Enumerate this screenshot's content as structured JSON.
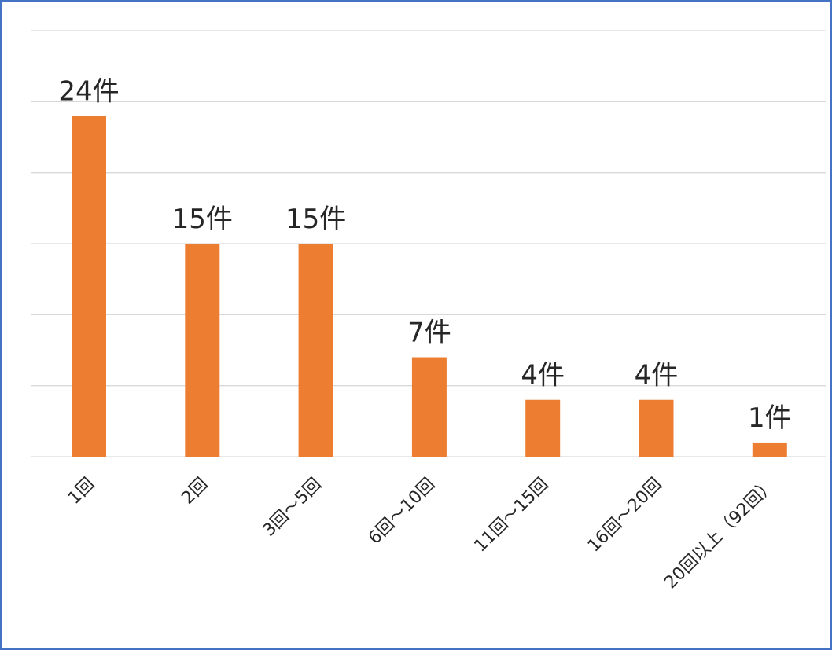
{
  "chart_data": {
    "type": "bar",
    "categories": [
      "1回",
      "2回",
      "3回～5回",
      "6回～10回",
      "11回～15回",
      "16回～20回",
      "20回以上（92回）"
    ],
    "values": [
      24,
      15,
      15,
      7,
      4,
      4,
      1
    ],
    "data_labels": [
      "24件",
      "15件",
      "15件",
      "7件",
      "4件",
      "4件",
      "1件"
    ],
    "title": "",
    "xlabel": "",
    "ylabel": "",
    "ylim": [
      0,
      30
    ],
    "grid_step": 5,
    "grid": true,
    "y_tick_labels_visible": false,
    "legend": "none",
    "bar_color": "#ed7d31",
    "border_color": "#4472c4",
    "grid_color": "#d9d9d9"
  }
}
